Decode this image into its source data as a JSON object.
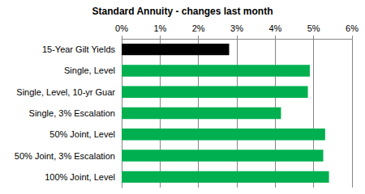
{
  "chart_data": {
    "type": "bar",
    "orientation": "horizontal",
    "title": "Standard Annuity - changes last month",
    "categories": [
      "15-Year Gilt Yields",
      "Single, Level",
      "Single, Level, 10-yr Guar",
      "Single, 3% Escalation",
      "50% Joint, Level",
      "50% Joint, 3% Escalation",
      "100% Joint, Level"
    ],
    "values": [
      2.8,
      4.9,
      4.85,
      4.15,
      5.3,
      5.25,
      5.4
    ],
    "colors": [
      "#000000",
      "#00b050",
      "#00b050",
      "#00b050",
      "#00b050",
      "#00b050",
      "#00b050"
    ],
    "xlim": [
      0,
      6
    ],
    "xticks": [
      {
        "value": 0,
        "label": "0%"
      },
      {
        "value": 1,
        "label": "1%"
      },
      {
        "value": 2,
        "label": "2%"
      },
      {
        "value": 3,
        "label": "3%"
      },
      {
        "value": 4,
        "label": "4%"
      },
      {
        "value": 5,
        "label": "5%"
      },
      {
        "value": 6,
        "label": "6%"
      }
    ],
    "grid": true
  }
}
